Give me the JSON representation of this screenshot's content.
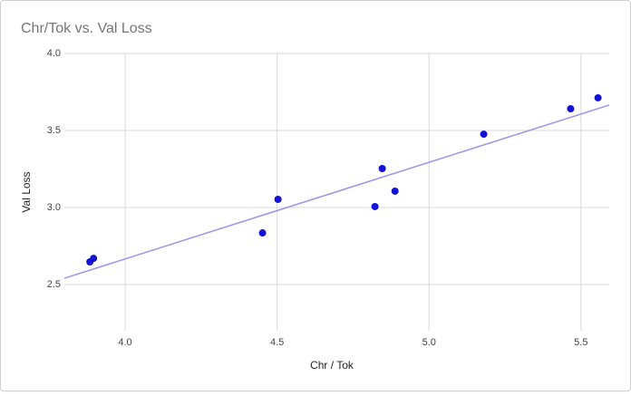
{
  "chart_data": {
    "type": "scatter",
    "title": "Chr/Tok vs. Val Loss",
    "x_label": "Chr / Tok",
    "y_label": "Val Loss",
    "series": [
      {
        "color": "#1212d6",
        "x": [
          3.884,
          3.896,
          4.452,
          4.503,
          4.822,
          4.846,
          4.888,
          5.18,
          5.466,
          5.556
        ],
        "values": [
          2.647,
          2.67,
          2.835,
          3.053,
          3.006,
          3.253,
          3.106,
          3.476,
          3.641,
          3.712
        ]
      }
    ],
    "trendline": {
      "color": "#9d92ea",
      "x": [
        3.8,
        5.593
      ],
      "values": [
        2.541,
        3.665
      ]
    },
    "xlim": [
      3.8,
      5.593
    ],
    "ylim": [
      2.2,
      4.0
    ],
    "xticks": [
      {
        "value": 4,
        "label": "4.0"
      },
      4.5,
      {
        "value": 5,
        "label": "5.0"
      },
      5.5
    ],
    "yticks": [
      {
        "value": 2.5,
        "label": "2.5"
      },
      {
        "value": 3,
        "label": "3.0"
      },
      3.5,
      {
        "value": 4,
        "label": "4.0"
      }
    ],
    "grid": true
  }
}
